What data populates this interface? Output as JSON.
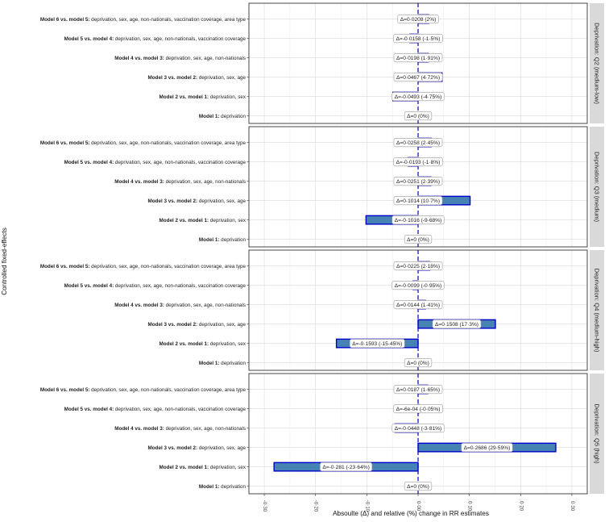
{
  "chart_data": {
    "type": "bar",
    "orientation": "horizontal",
    "xlabel": "Absoulte (Δ) and relative (%) change in RR estimates",
    "ylabel": "Controlled fixed-effects",
    "xlim": [
      -0.33,
      0.33
    ],
    "xticks": [
      -0.3,
      -0.2,
      -0.1,
      0.0,
      0.1,
      0.2,
      0.3
    ],
    "xtick_labels": [
      "-0·30",
      "-0·20",
      "-0·10",
      "0·00",
      "0·10",
      "0·20",
      "0·30"
    ],
    "categories": [
      {
        "bold": "Model 6 vs. model 5:",
        "rest": " deprivation, sex, age, non-nationals, vaccination coverage, area type"
      },
      {
        "bold": "Model 5 vs. model 4:",
        "rest": " deprivation, sex, age, non-nationals, vaccination coverage"
      },
      {
        "bold": "Model 4 vs. model 3:",
        "rest": " deprivation, sex, age, non-nationals"
      },
      {
        "bold": "Model 3 vs. model 2:",
        "rest": " deprivation, sex, age"
      },
      {
        "bold": "Model 2 vs. model 1:",
        "rest": " deprivation, sex"
      },
      {
        "bold": "Model 1:",
        "rest": " deprivation"
      }
    ],
    "panels": [
      {
        "strip": "Deprivation: Q2 (medium-low)",
        "values": [
          0.0208,
          -0.0158,
          0.0198,
          0.0467,
          -0.0493,
          0
        ],
        "labels": [
          "Δ=0·0208 (2%)",
          "Δ=-0·0158 (-1·5%)",
          "Δ=0·0198 (1·91%)",
          "Δ=0·0467 (4·72%)",
          "Δ=-0·0493 (-4·75%)",
          "Δ=0 (0%)"
        ]
      },
      {
        "strip": "Deprivation: Q3 (medium)",
        "values": [
          0.0258,
          -0.0193,
          0.0251,
          0.1014,
          -0.1016,
          0
        ],
        "labels": [
          "Δ=0·0258 (2·45%)",
          "Δ=-0·0193 (-1·8%)",
          "Δ=0·0251 (2·39%)",
          "Δ=0·1014 (10·7%)",
          "Δ=-0·1016 (-9·68%)",
          "Δ=0 (0%)"
        ]
      },
      {
        "strip": "Deprivation: Q4 (medium-high)",
        "values": [
          0.0225,
          -0.0099,
          0.0144,
          0.1508,
          -0.1593,
          0
        ],
        "labels": [
          "Δ=0·0225 (2·18%)",
          "Δ=-0·0099 (-0·95%)",
          "Δ=0·0144 (1·41%)",
          "Δ=0·1508 (17·3%)",
          "Δ=-0·1593 (-15·45%)",
          "Δ=0 (0%)"
        ]
      },
      {
        "strip": "Deprivation: Q5 (high)",
        "values": [
          0.0187,
          -0.0006,
          -0.0448,
          0.2686,
          -0.281,
          0
        ],
        "labels": [
          "Δ=0·0187 (1·65%)",
          "Δ=-6e-04 (-0·05%)",
          "Δ=-0·0448 (-3·81%)",
          "Δ=0·2686 (29·59%)",
          "Δ=-0·281 (-23·64%)",
          "Δ=0 (0%)"
        ]
      }
    ]
  }
}
